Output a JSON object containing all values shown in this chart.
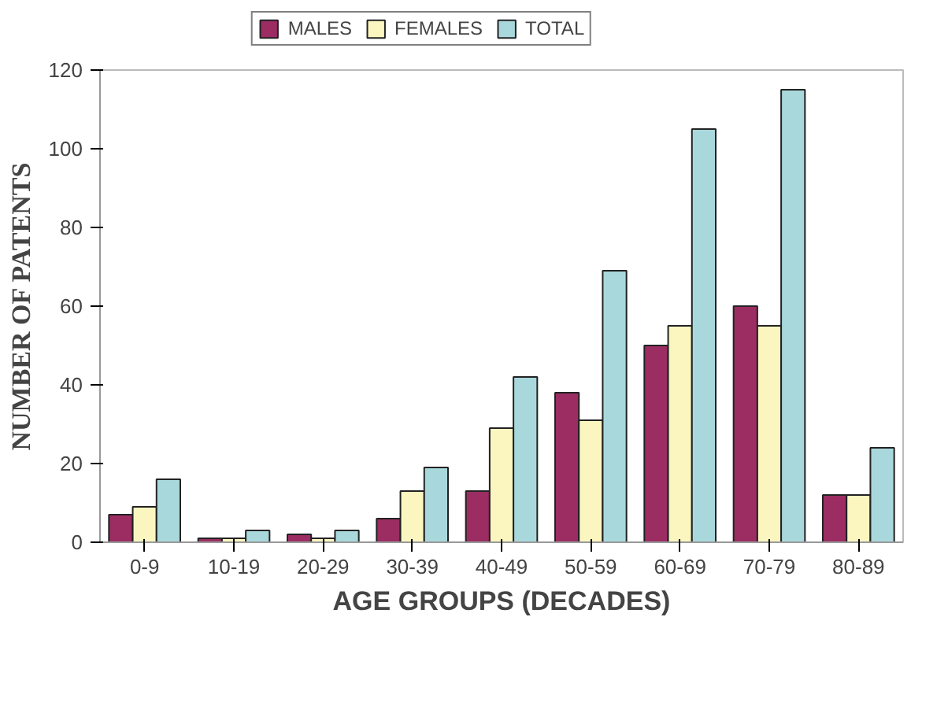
{
  "chart_data": {
    "type": "bar",
    "xlabel": "AGE GROUPS (DECADES)",
    "ylabel": "NUMBER OF PATENTS",
    "categories": [
      "0-9",
      "10-19",
      "20-29",
      "30-39",
      "40-49",
      "50-59",
      "60-69",
      "70-79",
      "80-89"
    ],
    "series": [
      {
        "name": "MALES",
        "color": "#9b2d62",
        "values": [
          7,
          1,
          2,
          6,
          13,
          38,
          50,
          60,
          12
        ]
      },
      {
        "name": "FEMALES",
        "color": "#fbf6c0",
        "values": [
          9,
          1,
          1,
          13,
          29,
          31,
          55,
          55,
          12
        ]
      },
      {
        "name": "TOTAL",
        "color": "#a9d8dc",
        "values": [
          16,
          3,
          3,
          19,
          42,
          69,
          105,
          115,
          24
        ]
      }
    ],
    "ylim": [
      0,
      120
    ],
    "yticks": [
      0,
      20,
      40,
      60,
      80,
      100,
      120
    ],
    "grid": false,
    "legend": "top"
  }
}
